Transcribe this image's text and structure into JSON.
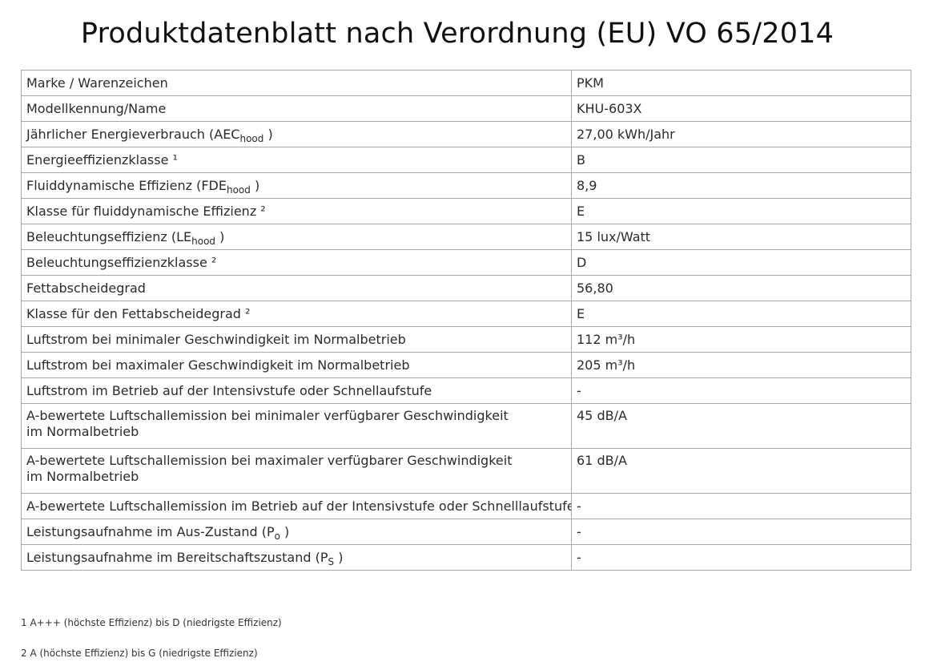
{
  "title": "Produktdatenblatt nach Verordnung (EU) VO 65/2014",
  "rows": [
    {
      "label": "Marke / Warenzeichen",
      "value": "PKM"
    },
    {
      "label": "Modellkennung/Name",
      "value": "KHU-603X"
    },
    {
      "label_pre": "Jährlicher  Energieverbrauch  (AEC",
      "label_sub": "hood",
      "label_post": " )",
      "value": "27,00 kWh/Jahr"
    },
    {
      "label": "Energieeffizienzklasse ¹",
      "value": "B"
    },
    {
      "label_pre": "Fluiddynamische  Effizienz  (FDE",
      "label_sub": "hood",
      "label_post": " )",
      "value": "8,9"
    },
    {
      "label": "Klasse für fluiddynamische Effizienz ²",
      "value": "E"
    },
    {
      "label_pre": "Beleuchtungseffizienz  (LE",
      "label_sub": "hood",
      "label_post": " )",
      "value": "15 lux/Watt"
    },
    {
      "label": "Beleuchtungseffizienzklasse ²",
      "value": "D"
    },
    {
      "label": "Fettabscheidegrad",
      "value": "56,80"
    },
    {
      "label": "Klasse für den Fettabscheidegrad ²",
      "value": "E"
    },
    {
      "label": "Luftstrom bei minimaler Geschwindigkeit im Normalbetrieb",
      "value": "112 m³/h"
    },
    {
      "label": "Luftstrom bei maximaler Geschwindigkeit im Normalbetrieb",
      "value": "205 m³/h"
    },
    {
      "label": "Luftstrom im Betrieb auf der Intensivstufe oder Schnellaufstufe",
      "value": "-"
    },
    {
      "label_line1": "A-bewertete Luftschallemission bei minimaler verfügbarer Geschwindigkeit",
      "label_line2": "im Normalbetrieb",
      "value": "45 dB/A"
    },
    {
      "label_line1": "A-bewertete Luftschallemission bei maximaler verfügbarer Geschwindigkeit",
      "label_line2": "im Normalbetrieb",
      "value": "61 dB/A"
    },
    {
      "label": "A-bewertete Luftschallemission im Betrieb auf der Intensivstufe oder Schnelllaufstufe",
      "value": "-"
    },
    {
      "label_pre": "Leistungsaufnahme  im  Aus-Zustand  (P",
      "label_sub": "o",
      "label_post": " )",
      "value": "-"
    },
    {
      "label_pre": "Leistungsaufnahme  im  Bereitschaftszustand  (P",
      "label_sub": "S",
      "label_post": " )",
      "value": "-"
    }
  ],
  "footnotes": [
    "1 A+++ (höchste Effizienz) bis D (niedrigste Effizienz)",
    "2 A (höchste Effizienz) bis G (niedrigste Effizienz)"
  ]
}
